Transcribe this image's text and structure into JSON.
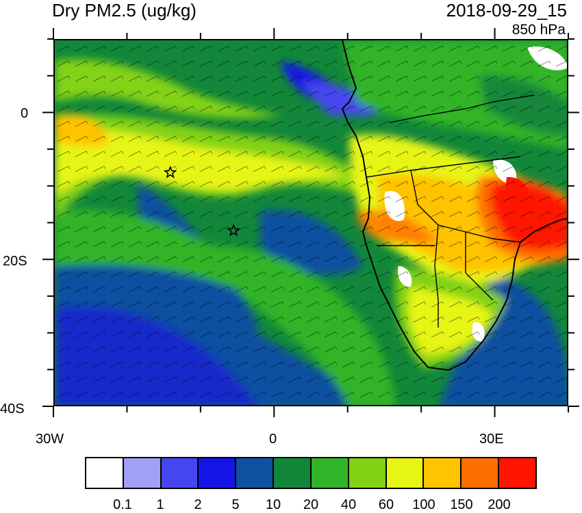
{
  "header": {
    "title": "Dry PM2.5 (ug/kg)",
    "datetime": "2018-09-29_15",
    "level": "850 hPa"
  },
  "map": {
    "lon_range": [
      -30,
      40
    ],
    "lat_range": [
      -40,
      10
    ],
    "x_tick_labels": [
      "30W",
      "0",
      "30E"
    ],
    "y_tick_labels": [
      "0",
      "20S",
      "40S"
    ],
    "markers": [
      {
        "name": "star-marker-1",
        "lon": -14.3,
        "lat": -8.0
      },
      {
        "name": "star-marker-2",
        "lon": -5.7,
        "lat": -15.9
      }
    ],
    "overlays": [
      "wind-barbs",
      "country-borders",
      "coastlines"
    ]
  },
  "colorbar": {
    "colors": [
      "#ffffff",
      "#a0a0f5",
      "#4646f0",
      "#1414e6",
      "#1050a0",
      "#12873a",
      "#32b428",
      "#82d214",
      "#e6f514",
      "#ffc300",
      "#ff6e00",
      "#ff1400"
    ],
    "labels": [
      "0.1",
      "1",
      "2",
      "5",
      "10",
      "20",
      "40",
      "60",
      "100",
      "150",
      "200"
    ]
  }
}
